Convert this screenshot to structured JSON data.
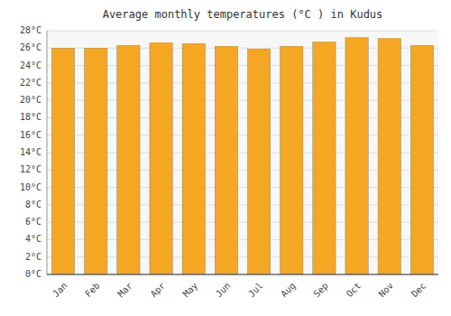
{
  "chart_data": {
    "type": "bar",
    "title": "Average monthly temperatures (°C ) in Kudus",
    "categories": [
      "Jan",
      "Feb",
      "Mar",
      "Apr",
      "May",
      "Jun",
      "Jul",
      "Aug",
      "Sep",
      "Oct",
      "Nov",
      "Dec"
    ],
    "values": [
      26.0,
      26.0,
      26.3,
      26.6,
      26.5,
      26.2,
      25.9,
      26.2,
      26.7,
      27.2,
      27.1,
      26.3
    ],
    "color": "#F5A623",
    "ylim": [
      0,
      28
    ],
    "yticks": [
      {
        "value": 0,
        "label": "0°C"
      },
      {
        "value": 2,
        "label": "2°C"
      },
      {
        "value": 4,
        "label": "4°C"
      },
      {
        "value": 6,
        "label": "6°C"
      },
      {
        "value": 8,
        "label": "8°C"
      },
      {
        "value": 10,
        "label": "10°C"
      },
      {
        "value": 12,
        "label": "12°C"
      },
      {
        "value": 14,
        "label": "14°C"
      },
      {
        "value": 16,
        "label": "16°C"
      },
      {
        "value": 18,
        "label": "18°C"
      },
      {
        "value": 20,
        "label": "20°C"
      },
      {
        "value": 22,
        "label": "22°C"
      },
      {
        "value": 24,
        "label": "24°C"
      },
      {
        "value": 26,
        "label": "26°C"
      },
      {
        "value": 28,
        "label": "28°C"
      }
    ],
    "grid": true
  }
}
